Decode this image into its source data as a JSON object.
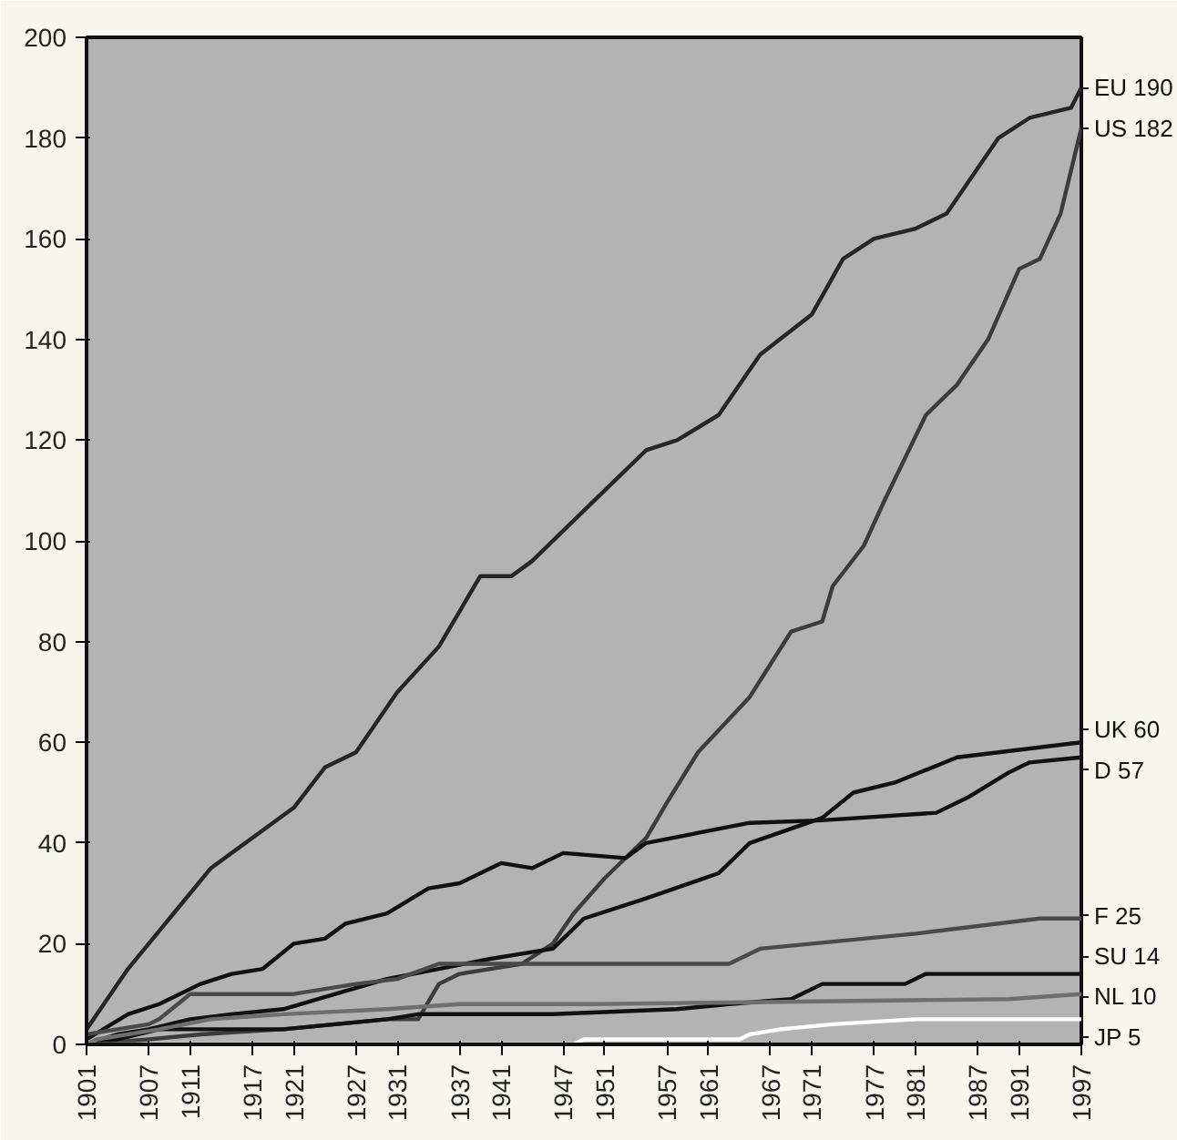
{
  "chart_data": {
    "type": "line",
    "xlim": [
      1901,
      1997
    ],
    "ylim": [
      0,
      200
    ],
    "yticks": [
      0,
      20,
      40,
      60,
      80,
      100,
      120,
      140,
      160,
      180,
      200
    ],
    "xticks": [
      1901,
      1907,
      1911,
      1917,
      1921,
      1927,
      1931,
      1937,
      1941,
      1947,
      1951,
      1957,
      1961,
      1967,
      1971,
      1977,
      1981,
      1987,
      1991,
      1997
    ],
    "grid": false,
    "marker": "none",
    "line_style": "solid",
    "series": [
      {
        "name": "EU",
        "color": "#262626",
        "x": [
          1901,
          1905,
          1909,
          1913,
          1917,
          1921,
          1924,
          1927,
          1931,
          1935,
          1939,
          1942,
          1944,
          1947,
          1951,
          1955,
          1958,
          1962,
          1966,
          1971,
          1974,
          1977,
          1981,
          1984,
          1989,
          1992,
          1996,
          1997
        ],
        "values": [
          3,
          15,
          25,
          35,
          41,
          47,
          55,
          58,
          70,
          79,
          93,
          93,
          96,
          102,
          110,
          118,
          120,
          125,
          137,
          145,
          156,
          160,
          162,
          165,
          180,
          184,
          186,
          190
        ],
        "value_labels": [
          null,
          null,
          null,
          null,
          null,
          null,
          null,
          null,
          null,
          null,
          null,
          null,
          null,
          null,
          null,
          null,
          null,
          null,
          null,
          null,
          null,
          null,
          null,
          null,
          null,
          null,
          null,
          "190"
        ]
      },
      {
        "name": "US",
        "color": "#3c3c3c",
        "x": [
          1901,
          1907,
          1912,
          1920,
          1930,
          1933,
          1935,
          1937,
          1940,
          1943,
          1946,
          1948,
          1951,
          1955,
          1957,
          1960,
          1965,
          1969,
          1972,
          1973,
          1976,
          1978,
          1982,
          1985,
          1988,
          1991,
          1993,
          1995,
          1997
        ],
        "values": [
          0,
          1,
          2,
          3,
          5,
          5,
          12,
          14,
          15,
          16,
          20,
          26,
          33,
          41,
          48,
          58,
          69,
          82,
          84,
          91,
          99,
          108,
          125,
          131,
          140,
          154,
          156,
          165,
          182
        ],
        "value_labels": [
          null,
          null,
          null,
          null,
          null,
          null,
          null,
          null,
          null,
          null,
          null,
          null,
          null,
          null,
          null,
          null,
          null,
          null,
          null,
          null,
          null,
          null,
          null,
          null,
          null,
          null,
          null,
          null,
          "182"
        ]
      },
      {
        "name": "UK",
        "color": "#111111",
        "x": [
          1901,
          1904,
          1907,
          1911,
          1915,
          1920,
          1925,
          1930,
          1935,
          1940,
          1946,
          1949,
          1955,
          1962,
          1965,
          1972,
          1975,
          1979,
          1985,
          1997
        ],
        "values": [
          0,
          2,
          3,
          5,
          6,
          7,
          10,
          13,
          15,
          17,
          19,
          25,
          29,
          34,
          40,
          45,
          50,
          52,
          57,
          60
        ],
        "value_labels": [
          null,
          null,
          null,
          null,
          null,
          null,
          null,
          null,
          null,
          null,
          null,
          null,
          null,
          null,
          null,
          null,
          null,
          null,
          null,
          "60"
        ]
      },
      {
        "name": "D",
        "color": "#111111",
        "x": [
          1901,
          1905,
          1908,
          1912,
          1915,
          1918,
          1921,
          1924,
          1926,
          1930,
          1934,
          1937,
          1941,
          1944,
          1947,
          1953,
          1955,
          1965,
          1972,
          1983,
          1986,
          1990,
          1992,
          1997
        ],
        "values": [
          1,
          6,
          8,
          12,
          14,
          15,
          20,
          21,
          24,
          26,
          31,
          32,
          36,
          35,
          38,
          37,
          40,
          44,
          44.5,
          46,
          49,
          54,
          56,
          57
        ],
        "value_labels": [
          null,
          null,
          null,
          null,
          null,
          null,
          null,
          null,
          null,
          null,
          null,
          null,
          null,
          null,
          null,
          null,
          null,
          null,
          null,
          null,
          null,
          null,
          null,
          "57"
        ]
      },
      {
        "name": "F",
        "color": "#4a4a4a",
        "x": [
          1901,
          1904,
          1907,
          1908,
          1911,
          1921,
          1927,
          1931,
          1935,
          1945,
          1963,
          1966,
          1981,
          1993,
          1997
        ],
        "values": [
          2,
          3,
          4,
          5,
          10,
          10,
          12,
          13,
          16,
          16,
          16,
          19,
          22,
          25,
          25
        ],
        "value_labels": [
          null,
          null,
          null,
          null,
          null,
          null,
          null,
          null,
          null,
          null,
          null,
          null,
          null,
          null,
          "25"
        ]
      },
      {
        "name": "SU",
        "color": "#111111",
        "x": [
          1901,
          1904,
          1908,
          1920,
          1930,
          1933,
          1946,
          1958,
          1963,
          1969,
          1972,
          1980,
          1982,
          1997
        ],
        "values": [
          0,
          1,
          3,
          3,
          5,
          6,
          6,
          7,
          8,
          9,
          12,
          12,
          14,
          14
        ],
        "value_labels": [
          null,
          null,
          null,
          null,
          null,
          null,
          null,
          null,
          null,
          null,
          null,
          null,
          null,
          "14"
        ]
      },
      {
        "name": "NL",
        "color": "#6e6e6e",
        "x": [
          1901,
          1902,
          1908,
          1913,
          1920,
          1930,
          1937,
          1950,
          1970,
          1990,
          1997
        ],
        "values": [
          0,
          1,
          3,
          5,
          6,
          7,
          8,
          8,
          8.5,
          9,
          10
        ],
        "value_labels": [
          null,
          null,
          null,
          null,
          null,
          null,
          null,
          null,
          null,
          null,
          "10"
        ]
      },
      {
        "name": "JP",
        "color": "#ffffff",
        "x": [
          1901,
          1948,
          1949,
          1964,
          1965,
          1968,
          1973,
          1981,
          1997
        ],
        "values": [
          0,
          0,
          1,
          1,
          2,
          3,
          4,
          5,
          5
        ],
        "value_labels": [
          null,
          null,
          null,
          null,
          null,
          null,
          null,
          null,
          "5"
        ]
      }
    ]
  }
}
